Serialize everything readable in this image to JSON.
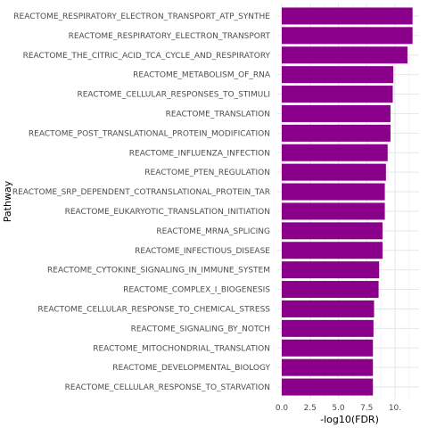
{
  "chart_data": {
    "type": "bar",
    "orientation": "horizontal",
    "xlabel": "-log10(FDR)",
    "ylabel": "Pathway",
    "xlim": [
      0,
      12
    ],
    "x_ticks": [
      0.0,
      2.5,
      5.0,
      7.5,
      10.0
    ],
    "x_tick_labels": [
      "0.0",
      "2.5",
      "5.0",
      "7.5",
      "10."
    ],
    "grid": true,
    "bar_color": "#8B008B",
    "categories": [
      "REACTOME_RESPIRATORY_ELECTRON_TRANSPORT_ATP_SYNTHE",
      "REACTOME_RESPIRATORY_ELECTRON_TRANSPORT",
      "REACTOME_THE_CITRIC_ACID_TCA_CYCLE_AND_RESPIRATORY",
      "REACTOME_METABOLISM_OF_RNA",
      "REACTOME_CELLULAR_RESPONSES_TO_STIMULI",
      "REACTOME_TRANSLATION",
      "REACTOME_POST_TRANSLATIONAL_PROTEIN_MODIFICATION",
      "REACTOME_INFLUENZA_INFECTION",
      "REACTOME_PTEN_REGULATION",
      "REACTOME_SRP_DEPENDENT_COTRANSLATIONAL_PROTEIN_TAR",
      "REACTOME_EUKARYOTIC_TRANSLATION_INITIATION",
      "REACTOME_MRNA_SPLICING",
      "REACTOME_INFECTIOUS_DISEASE",
      "REACTOME_CYTOKINE_SIGNALING_IN_IMMUNE_SYSTEM",
      "REACTOME_COMPLEX_I_BIOGENESIS",
      "REACTOME_CELLULAR_RESPONSE_TO_CHEMICAL_STRESS",
      "REACTOME_SIGNALING_BY_NOTCH",
      "REACTOME_MITOCHONDRIAL_TRANSLATION",
      "REACTOME_DEVELOPMENTAL_BIOLOGY",
      "REACTOME_CELLULAR_RESPONSE_TO_STARVATION"
    ],
    "values": [
      11.55,
      11.55,
      11.1,
      9.85,
      9.8,
      9.6,
      9.6,
      9.35,
      9.2,
      9.1,
      9.1,
      8.9,
      8.9,
      8.6,
      8.55,
      8.15,
      8.1,
      8.05,
      8.05,
      8.05
    ]
  }
}
